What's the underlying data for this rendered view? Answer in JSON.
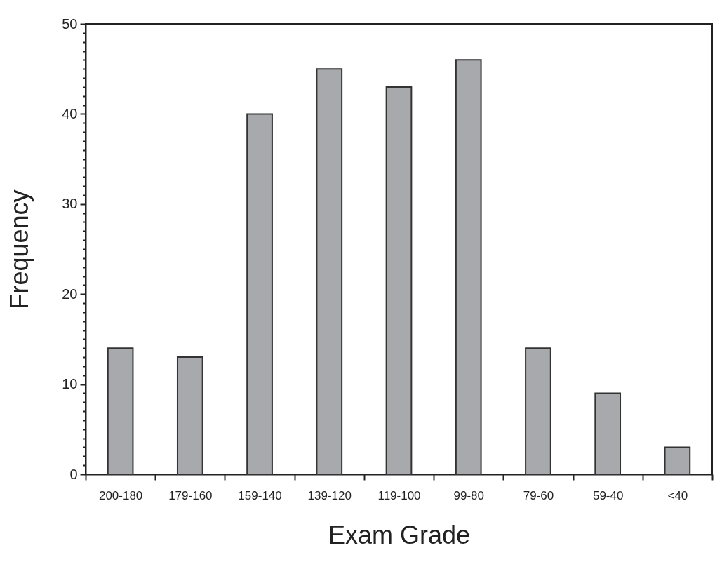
{
  "chart_data": {
    "type": "bar",
    "xlabel": "Exam Grade",
    "ylabel": "Frequency",
    "categories": [
      "200-180",
      "179-160",
      "159-140",
      "139-120",
      "119-100",
      "99-80",
      "79-60",
      "59-40",
      "<40"
    ],
    "values": [
      14,
      13,
      40,
      45,
      43,
      46,
      14,
      9,
      3
    ],
    "color": "#a7a9ac",
    "ylim": [
      0,
      50
    ],
    "yticks": [
      0,
      {
        "value": 1,
        "label": null
      },
      {
        "value": 2,
        "label": null
      },
      {
        "value": 3,
        "label": null
      },
      {
        "value": 4,
        "label": null
      },
      {
        "value": 5,
        "label": null
      },
      {
        "value": 6,
        "label": null
      },
      {
        "value": 7,
        "label": null
      },
      {
        "value": 8,
        "label": null
      },
      {
        "value": 9,
        "label": null
      },
      10,
      {
        "value": 11,
        "label": null
      },
      {
        "value": 12,
        "label": null
      },
      {
        "value": 13,
        "label": null
      },
      {
        "value": 14,
        "label": null
      },
      {
        "value": 15,
        "label": null
      },
      {
        "value": 16,
        "label": null
      },
      {
        "value": 17,
        "label": null
      },
      {
        "value": 18,
        "label": null
      },
      {
        "value": 19,
        "label": null
      },
      20,
      {
        "value": 21,
        "label": null
      },
      {
        "value": 22,
        "label": null
      },
      {
        "value": 23,
        "label": null
      },
      {
        "value": 24,
        "label": null
      },
      {
        "value": 25,
        "label": null
      },
      {
        "value": 26,
        "label": null
      },
      {
        "value": 27,
        "label": null
      },
      {
        "value": 28,
        "label": null
      },
      {
        "value": 29,
        "label": null
      },
      30,
      {
        "value": 31,
        "label": null
      },
      {
        "value": 32,
        "label": null
      },
      {
        "value": 33,
        "label": null
      },
      {
        "value": 34,
        "label": null
      },
      {
        "value": 35,
        "label": null
      },
      {
        "value": 36,
        "label": null
      },
      {
        "value": 37,
        "label": null
      },
      {
        "value": 38,
        "label": null
      },
      {
        "value": 39,
        "label": null
      },
      40,
      {
        "value": 41,
        "label": null
      },
      {
        "value": 42,
        "label": null
      },
      {
        "value": 43,
        "label": null
      },
      {
        "value": 44,
        "label": null
      },
      {
        "value": 45,
        "label": null
      },
      {
        "value": 46,
        "label": null
      },
      {
        "value": 47,
        "label": null
      },
      {
        "value": 48,
        "label": null
      },
      {
        "value": 49,
        "label": null
      },
      50
    ],
    "grid": false
  }
}
